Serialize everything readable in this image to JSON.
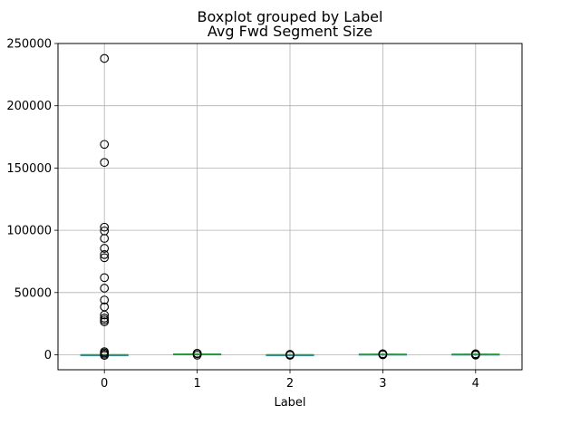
{
  "chart_data": {
    "type": "boxplot",
    "suptitle": "Boxplot grouped by Label",
    "title": "Avg Fwd Segment Size",
    "xlabel": "Label",
    "ylabel": "",
    "categories": [
      "0",
      "1",
      "2",
      "3",
      "4"
    ],
    "ylim": [
      -12000,
      250000
    ],
    "yticks": [
      0,
      50000,
      100000,
      150000,
      200000,
      250000
    ],
    "ytick_labels": [
      "0",
      "50000",
      "100000",
      "150000",
      "200000",
      "250000"
    ],
    "grid": true,
    "colors": {
      "box": "#1f77b4",
      "median": "#2ca02c",
      "grid": "#b0b0b0",
      "flier": "#000000"
    },
    "boxes": [
      {
        "category": "0",
        "whislo": 0,
        "q1": 0,
        "med": 0,
        "q3": 0,
        "whishi": 0,
        "fliers": [
          238000,
          169000,
          154500,
          102500,
          99500,
          93500,
          85500,
          80500,
          78000,
          62000,
          53500,
          44000,
          38500,
          32000,
          29500,
          28000,
          26500,
          2500,
          1500,
          500,
          -500
        ]
      },
      {
        "category": "1",
        "whislo": 300,
        "q1": 400,
        "med": 500,
        "q3": 600,
        "whishi": 700,
        "fliers": [
          1200,
          1000,
          900,
          -300
        ]
      },
      {
        "category": "2",
        "whislo": 0,
        "q1": 0,
        "med": 0,
        "q3": 0,
        "whishi": 0,
        "fliers": [
          400,
          200,
          -200,
          -400
        ]
      },
      {
        "category": "3",
        "whislo": 200,
        "q1": 300,
        "med": 400,
        "q3": 450,
        "whishi": 500,
        "fliers": [
          800,
          700,
          600,
          0
        ]
      },
      {
        "category": "4",
        "whislo": 200,
        "q1": 300,
        "med": 400,
        "q3": 450,
        "whishi": 500,
        "fliers": [
          800,
          600,
          0,
          -200
        ]
      }
    ]
  }
}
